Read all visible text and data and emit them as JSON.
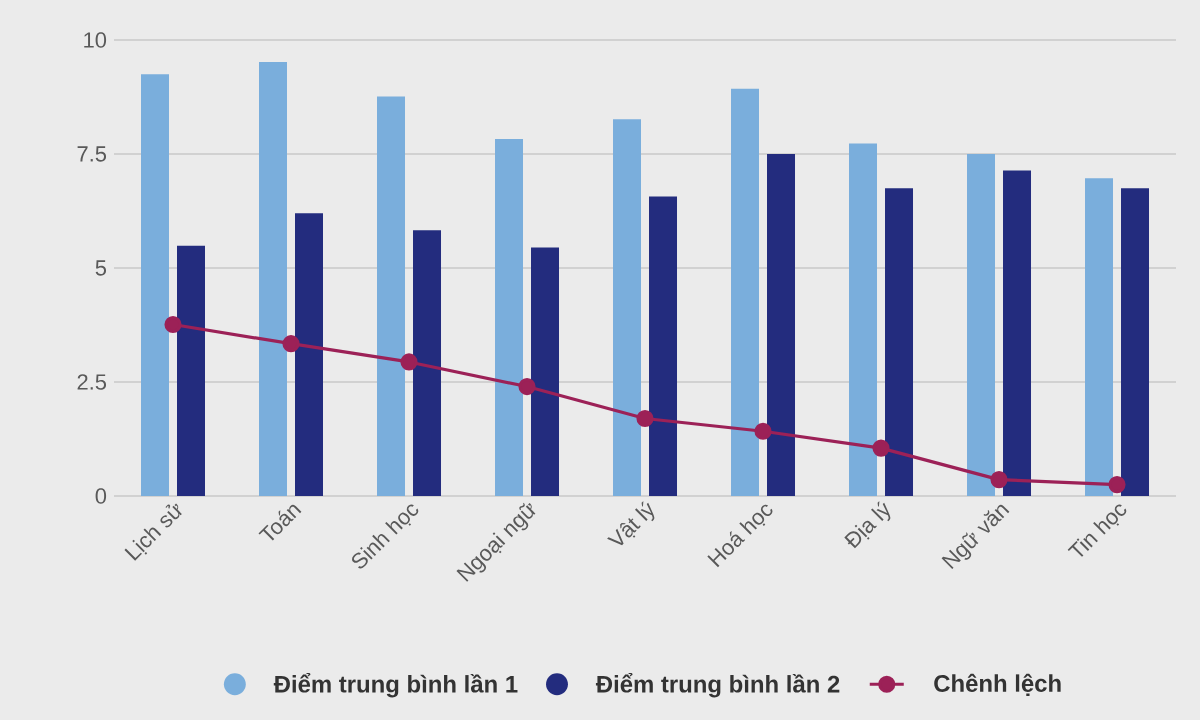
{
  "chart_data": {
    "type": "bar",
    "categories": [
      "Lịch sử",
      "Toán",
      "Sinh học",
      "Ngoại ngữ",
      "Vật lý",
      "Hoá học",
      "Địa lý",
      "Ngữ văn",
      "Tin học"
    ],
    "series": [
      {
        "name": "Điểm trung bình lần 1",
        "color": "#7aaedc",
        "values": [
          9.25,
          9.52,
          8.76,
          7.83,
          8.26,
          8.93,
          7.73,
          7.5,
          6.97
        ]
      },
      {
        "name": "Điểm trung bình lần 2",
        "color": "#232c7e",
        "values": [
          5.49,
          6.2,
          5.83,
          5.45,
          6.57,
          7.5,
          6.75,
          7.14,
          6.75
        ]
      },
      {
        "name": "Chênh lệch",
        "color": "#9c2157",
        "type": "line",
        "values": [
          3.76,
          3.34,
          2.94,
          2.4,
          1.7,
          1.42,
          1.05,
          0.36,
          0.25
        ]
      }
    ],
    "ylim": [
      0,
      10
    ],
    "yticks": [
      0,
      2.5,
      5,
      7.5,
      10
    ],
    "grid": "y",
    "legend": "bottom",
    "marker": "circle"
  }
}
